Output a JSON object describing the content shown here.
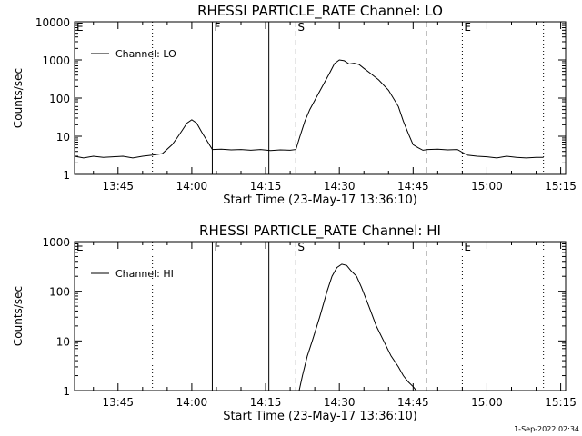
{
  "footer": {
    "timestamp": "1-Sep-2022 02:34"
  },
  "chart_data": [
    {
      "type": "line",
      "title": "RHESSI PARTICLE_RATE Channel: LO",
      "xlabel": "Start Time (23-May-17 13:36:10)",
      "ylabel": "Counts/sec",
      "yscale": "log",
      "ylim": [
        1,
        10000
      ],
      "xlim": [
        "13:36:10",
        "15:16:00"
      ],
      "x_ticks": [
        "13:45",
        "14:00",
        "14:15",
        "14:30",
        "14:45",
        "15:00",
        "15:15"
      ],
      "y_ticks": [
        "1",
        "10",
        "100",
        "1000",
        "10000"
      ],
      "legend": {
        "placement": "top-left",
        "entries": [
          "Channel: LO"
        ]
      },
      "events": [
        {
          "label": "E",
          "time": "13:36:10",
          "style": "dotted"
        },
        {
          "label": "",
          "time": "13:52:00",
          "style": "dotted"
        },
        {
          "label": "F",
          "time": "14:04:10",
          "style": "solid"
        },
        {
          "label": "",
          "time": "14:15:40",
          "style": "solid"
        },
        {
          "label": "S",
          "time": "14:21:10",
          "style": "dashed"
        },
        {
          "label": "",
          "time": "14:47:40",
          "style": "dashed"
        },
        {
          "label": "E",
          "time": "14:55:00",
          "style": "dotted"
        },
        {
          "label": "",
          "time": "15:11:30",
          "style": "dotted"
        }
      ],
      "series": [
        {
          "x": [
            "13:36:10",
            "13:38:00",
            "13:40:00",
            "13:42:00",
            "13:44:00",
            "13:46:00",
            "13:48:00",
            "13:50:00",
            "13:52:00",
            "13:54:00",
            "13:56:00",
            "13:57:00",
            "13:58:00",
            "13:59:00",
            "14:00:00",
            "14:01:00",
            "14:02:00",
            "14:03:00",
            "14:04:10",
            "14:06:00",
            "14:08:00",
            "14:10:00",
            "14:12:00",
            "14:14:00",
            "14:16:00",
            "14:18:00",
            "14:20:00",
            "14:21:10",
            "14:22:00",
            "14:23:00",
            "14:24:00",
            "14:26:00",
            "14:28:00",
            "14:29:00",
            "14:30:00",
            "14:31:00",
            "14:32:00",
            "14:33:00",
            "14:34:00",
            "14:35:00",
            "14:36:00",
            "14:38:00",
            "14:40:00",
            "14:42:00",
            "14:43:00",
            "14:44:00",
            "14:45:00",
            "14:46:00",
            "14:47:00",
            "14:48:00",
            "14:50:00",
            "14:52:00",
            "14:54:00",
            "14:56:00",
            "14:58:00",
            "15:00:00",
            "15:02:00",
            "15:04:00",
            "15:06:00",
            "15:08:00",
            "15:10:00",
            "15:11:30"
          ],
          "y": [
            3,
            2.7,
            3,
            2.8,
            2.9,
            3.0,
            2.7,
            3.0,
            3.2,
            3.5,
            6,
            9,
            14,
            22,
            27,
            22,
            13,
            8,
            4.5,
            4.6,
            4.4,
            4.5,
            4.3,
            4.5,
            4.2,
            4.4,
            4.3,
            4.5,
            10,
            25,
            50,
            150,
            450,
            800,
            1000,
            950,
            780,
            820,
            760,
            600,
            480,
            300,
            160,
            60,
            25,
            12,
            6,
            5,
            4.3,
            4.5,
            4.6,
            4.4,
            4.5,
            3.2,
            3,
            2.9,
            2.7,
            3.0,
            2.8,
            2.7,
            2.8,
            2.8
          ]
        }
      ]
    },
    {
      "type": "line",
      "title": "RHESSI PARTICLE_RATE Channel: HI",
      "xlabel": "Start Time (23-May-17 13:36:10)",
      "ylabel": "Counts/sec",
      "yscale": "log",
      "ylim": [
        1,
        1000
      ],
      "xlim": [
        "13:36:10",
        "15:16:00"
      ],
      "x_ticks": [
        "13:45",
        "14:00",
        "14:15",
        "14:30",
        "14:45",
        "15:00",
        "15:15"
      ],
      "y_ticks": [
        "1",
        "10",
        "100",
        "1000"
      ],
      "legend": {
        "placement": "top-left",
        "entries": [
          "Channel: HI"
        ]
      },
      "events": [
        {
          "label": "E",
          "time": "13:36:10",
          "style": "dotted"
        },
        {
          "label": "",
          "time": "13:52:00",
          "style": "dotted"
        },
        {
          "label": "F",
          "time": "14:04:10",
          "style": "solid"
        },
        {
          "label": "",
          "time": "14:15:40",
          "style": "solid"
        },
        {
          "label": "S",
          "time": "14:21:10",
          "style": "dashed"
        },
        {
          "label": "",
          "time": "14:47:40",
          "style": "dashed"
        },
        {
          "label": "E",
          "time": "14:55:00",
          "style": "dotted"
        },
        {
          "label": "",
          "time": "15:11:30",
          "style": "dotted"
        }
      ],
      "series": [
        {
          "x": [
            "14:21:50",
            "14:22:30",
            "14:23:30",
            "14:24:30",
            "14:26:00",
            "14:27:30",
            "14:28:30",
            "14:29:30",
            "14:30:30",
            "14:31:30",
            "14:32:30",
            "14:33:30",
            "14:34:30",
            "14:36:00",
            "14:37:30",
            "14:39:00",
            "14:40:30",
            "14:42:00",
            "14:43:00",
            "14:44:00",
            "14:45:00",
            "14:45:40"
          ],
          "y": [
            1,
            2,
            5,
            10,
            30,
            100,
            200,
            300,
            350,
            330,
            250,
            200,
            120,
            50,
            20,
            10,
            5,
            3,
            2,
            1.5,
            1.2,
            1
          ]
        }
      ]
    }
  ]
}
